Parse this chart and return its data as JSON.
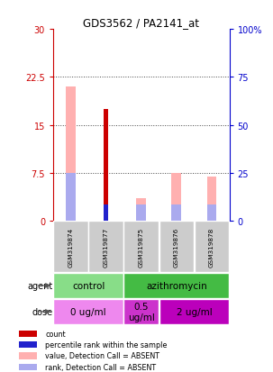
{
  "title": "GDS3562 / PA2141_at",
  "samples": [
    "GSM319874",
    "GSM319877",
    "GSM319875",
    "GSM319876",
    "GSM319878"
  ],
  "count_values": [
    0,
    17.5,
    0,
    0,
    0
  ],
  "percentile_values": [
    0,
    8.5,
    0,
    0,
    0
  ],
  "value_absent": [
    21.0,
    0,
    3.5,
    7.5,
    7.0
  ],
  "rank_absent": [
    25.0,
    0,
    8.5,
    8.5,
    8.5
  ],
  "ylim_left": [
    0,
    30
  ],
  "ylim_right": [
    0,
    100
  ],
  "yticks_left": [
    0,
    7.5,
    15,
    22.5,
    30
  ],
  "ytick_labels_left": [
    "0",
    "7.5",
    "15",
    "22.5",
    "30"
  ],
  "yticks_right": [
    0,
    25,
    50,
    75,
    100
  ],
  "ytick_labels_right": [
    "0",
    "25",
    "50",
    "75",
    "100%"
  ],
  "agent_groups": [
    {
      "label": "control",
      "cols": [
        0,
        1
      ],
      "color": "#88DD88"
    },
    {
      "label": "azithromycin",
      "cols": [
        2,
        3,
        4
      ],
      "color": "#44BB44"
    }
  ],
  "dose_groups": [
    {
      "label": "0 ug/ml",
      "cols": [
        0,
        1
      ],
      "color": "#EE88EE"
    },
    {
      "label": "0.5\nug/ml",
      "cols": [
        2
      ],
      "color": "#CC33CC"
    },
    {
      "label": "2 ug/ml",
      "cols": [
        3,
        4
      ],
      "color": "#BB00BB"
    }
  ],
  "count_color": "#CC0000",
  "percentile_color": "#2222CC",
  "value_absent_color": "#FFB0B0",
  "rank_absent_color": "#AAAAEE",
  "grid_color": "#888888",
  "sample_box_color": "#CCCCCC",
  "legend_items": [
    {
      "label": "count",
      "color": "#CC0000"
    },
    {
      "label": "percentile rank within the sample",
      "color": "#2222CC"
    },
    {
      "label": "value, Detection Call = ABSENT",
      "color": "#FFB0B0"
    },
    {
      "label": "rank, Detection Call = ABSENT",
      "color": "#AAAAEE"
    }
  ]
}
